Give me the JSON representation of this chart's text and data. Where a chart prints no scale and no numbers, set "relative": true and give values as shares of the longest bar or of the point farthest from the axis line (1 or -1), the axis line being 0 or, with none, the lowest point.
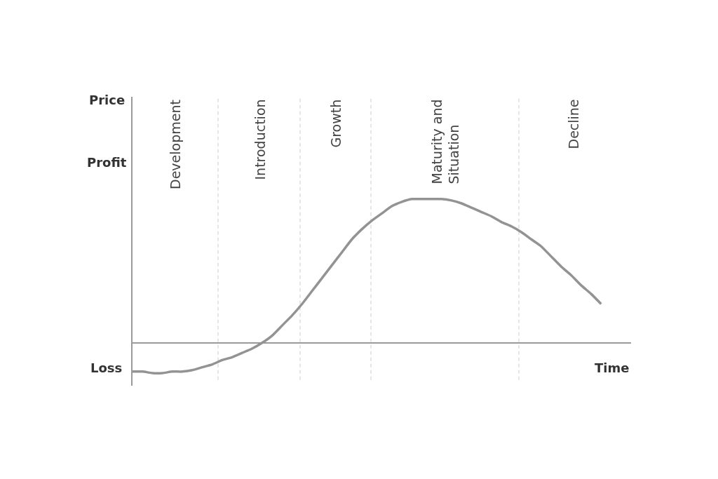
{
  "chart_data": {
    "type": "line",
    "relative": true,
    "xlabel": "Time",
    "annotations": [
      "Price",
      "Profit",
      "Loss",
      "Development",
      "Introduction",
      "Growth",
      "Maturity and Situation",
      "Decline"
    ],
    "categories": [
      null,
      null,
      null,
      null,
      null,
      null,
      null,
      null,
      null,
      null,
      null,
      null,
      null,
      null,
      null,
      null,
      null,
      null,
      null,
      null,
      null,
      null,
      null,
      null,
      null,
      null,
      null,
      null,
      null,
      null,
      null,
      null,
      null,
      null,
      null,
      null,
      null,
      null,
      null,
      null,
      null,
      null,
      null,
      null,
      null,
      null,
      null,
      null,
      null,
      null,
      null
    ],
    "series": [
      {
        "color": "#939393",
        "values": [
          -0.2,
          -0.2,
          -0.21,
          -0.21,
          -0.2,
          -0.2,
          -0.19,
          -0.17,
          -0.15,
          -0.12,
          -0.1,
          -0.07,
          -0.04,
          0.0,
          0.05,
          0.12,
          0.19,
          0.27,
          0.36,
          0.45,
          0.54,
          0.63,
          0.72,
          0.79,
          0.85,
          0.9,
          0.95,
          0.98,
          1.0,
          1.0,
          1.0,
          1.0,
          0.99,
          0.97,
          0.94,
          0.91,
          0.88,
          0.84,
          0.81,
          0.77,
          0.72,
          0.67,
          0.6,
          0.53,
          0.47,
          0.4,
          0.34,
          0.27,
          null,
          null,
          null
        ]
      }
    ]
  }
}
